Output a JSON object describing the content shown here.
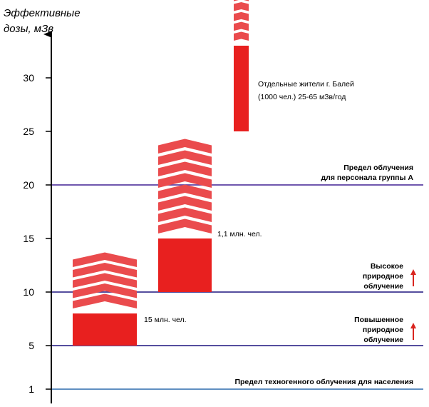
{
  "chart_data": {
    "type": "bar",
    "ylabel": [
      "Эффективные",
      "дозы, мЗв"
    ],
    "yticks": [
      1,
      5,
      10,
      15,
      20,
      25,
      30
    ],
    "ylim": [
      0,
      35
    ],
    "grid": false,
    "reference_lines": [
      {
        "value": 20,
        "label": [
          "Предел облучения",
          "для персонала группы А"
        ],
        "color": "#5b3fa3"
      },
      {
        "value": 10,
        "label": [
          "Высокое",
          "природное",
          "облучение"
        ],
        "color": "#3d3590",
        "arrow": true
      },
      {
        "value": 5,
        "label": [
          "Повышенное",
          "природное",
          "облучение"
        ],
        "color": "#3d3590",
        "arrow": true
      },
      {
        "value": 1,
        "label": [
          "Предел техногенного облучения для населения"
        ],
        "color": "#4a7fb8"
      }
    ],
    "bars": [
      {
        "from": 5,
        "to": 8,
        "extends_to": 13.3,
        "label": [
          "15 млн. чел."
        ]
      },
      {
        "from": 10,
        "to": 15,
        "extends_to": 24,
        "label": [
          "1,1 млн. чел."
        ]
      },
      {
        "from": 25,
        "to": 33,
        "extends_to": 39,
        "label": [
          "Отдельные жители г. Балей",
          "(1000 чел.) 25-65 мЗв/год"
        ]
      }
    ],
    "colors": {
      "bar": "#e8201f",
      "chevron": "#ea4b4d",
      "arrow": "#d9251f"
    }
  }
}
